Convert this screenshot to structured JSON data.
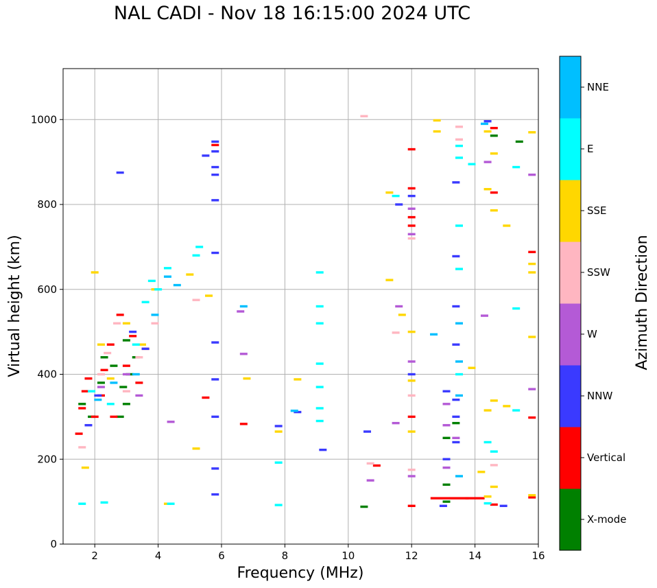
{
  "chart_data": {
    "type": "scatter",
    "title": "NAL CADI - Nov 18 16:15:00 2024 UTC",
    "xlabel": "Frequency (MHz)",
    "ylabel": "Virtual height (km)",
    "xlim": [
      1,
      16
    ],
    "ylim": [
      0,
      1120
    ],
    "xticks": [
      2,
      4,
      6,
      8,
      10,
      12,
      14,
      16
    ],
    "yticks": [
      0,
      200,
      400,
      600,
      800,
      1000
    ],
    "grid": true,
    "colorbar": {
      "label": "Azimuth Direction",
      "categories": [
        {
          "name": "X-mode",
          "color": "#008000"
        },
        {
          "name": "Vertical",
          "color": "#ff0000"
        },
        {
          "name": "NNW",
          "color": "#3a3aff"
        },
        {
          "name": "W",
          "color": "#b45ad6"
        },
        {
          "name": "SSW",
          "color": "#ffb6c1"
        },
        {
          "name": "SSE",
          "color": "#ffd700"
        },
        {
          "name": "E",
          "color": "#00ffff"
        },
        {
          "name": "NNE",
          "color": "#00bfff"
        }
      ]
    },
    "series": [
      {
        "name": "X-mode",
        "points": [
          [
            1.6,
            330
          ],
          [
            1.9,
            300
          ],
          [
            2.2,
            380
          ],
          [
            2.3,
            440
          ],
          [
            2.6,
            420
          ],
          [
            2.8,
            300
          ],
          [
            2.9,
            370
          ],
          [
            3.0,
            330
          ],
          [
            3.0,
            480
          ],
          [
            3.1,
            400
          ],
          [
            3.3,
            440
          ],
          [
            10.5,
            88
          ],
          [
            13.1,
            100
          ],
          [
            13.1,
            250
          ],
          [
            13.1,
            140
          ],
          [
            13.4,
            285
          ],
          [
            14.6,
            962
          ],
          [
            15.4,
            948
          ]
        ]
      },
      {
        "name": "Vertical",
        "points": [
          [
            1.5,
            260
          ],
          [
            1.6,
            320
          ],
          [
            1.7,
            360
          ],
          [
            1.8,
            390
          ],
          [
            2.0,
            300
          ],
          [
            2.2,
            350
          ],
          [
            2.3,
            410
          ],
          [
            2.5,
            470
          ],
          [
            2.6,
            300
          ],
          [
            2.8,
            540
          ],
          [
            3.0,
            420
          ],
          [
            3.2,
            490
          ],
          [
            3.4,
            380
          ],
          [
            3.6,
            460
          ],
          [
            5.5,
            345
          ],
          [
            5.8,
            940
          ],
          [
            6.7,
            283
          ],
          [
            10.9,
            185
          ],
          [
            12.0,
            930
          ],
          [
            12.0,
            838
          ],
          [
            12.0,
            770
          ],
          [
            12.0,
            750
          ],
          [
            12.0,
            300
          ],
          [
            12.0,
            90
          ],
          [
            12.9,
            108
          ],
          [
            13.5,
            108
          ],
          [
            14.0,
            108
          ],
          [
            14.6,
            980
          ],
          [
            14.6,
            828
          ],
          [
            14.6,
            93
          ],
          [
            15.8,
            688
          ],
          [
            15.8,
            298
          ],
          [
            15.8,
            110
          ]
        ]
      },
      {
        "name": "NNW",
        "points": [
          [
            1.8,
            280
          ],
          [
            2.1,
            350
          ],
          [
            2.8,
            875
          ],
          [
            3.2,
            500
          ],
          [
            3.6,
            460
          ],
          [
            5.5,
            915
          ],
          [
            5.8,
            948
          ],
          [
            5.8,
            925
          ],
          [
            5.8,
            888
          ],
          [
            5.8,
            870
          ],
          [
            5.8,
            810
          ],
          [
            5.8,
            686
          ],
          [
            5.8,
            475
          ],
          [
            5.8,
            388
          ],
          [
            5.8,
            300
          ],
          [
            5.8,
            178
          ],
          [
            5.8,
            117
          ],
          [
            7.8,
            278
          ],
          [
            8.4,
            311
          ],
          [
            9.2,
            222
          ],
          [
            10.6,
            265
          ],
          [
            11.6,
            800
          ],
          [
            12.0,
            820
          ],
          [
            12.0,
            400
          ],
          [
            13.0,
            90
          ],
          [
            13.1,
            360
          ],
          [
            13.1,
            200
          ],
          [
            13.4,
            852
          ],
          [
            13.4,
            678
          ],
          [
            13.4,
            560
          ],
          [
            13.4,
            470
          ],
          [
            13.4,
            340
          ],
          [
            13.4,
            300
          ],
          [
            13.4,
            240
          ],
          [
            14.4,
            996
          ],
          [
            14.9,
            90
          ]
        ]
      },
      {
        "name": "W",
        "points": [
          [
            2.2,
            370
          ],
          [
            3.0,
            400
          ],
          [
            3.4,
            350
          ],
          [
            4.4,
            288
          ],
          [
            6.6,
            548
          ],
          [
            6.7,
            448
          ],
          [
            10.7,
            150
          ],
          [
            11.5,
            285
          ],
          [
            11.6,
            560
          ],
          [
            12.0,
            790
          ],
          [
            12.0,
            730
          ],
          [
            12.0,
            430
          ],
          [
            12.0,
            160
          ],
          [
            13.1,
            330
          ],
          [
            13.1,
            280
          ],
          [
            13.1,
            180
          ],
          [
            13.4,
            250
          ],
          [
            14.3,
            538
          ],
          [
            14.4,
            900
          ],
          [
            15.8,
            870
          ],
          [
            15.8,
            365
          ]
        ]
      },
      {
        "name": "SSW",
        "points": [
          [
            1.6,
            228
          ],
          [
            2.2,
            400
          ],
          [
            2.4,
            450
          ],
          [
            2.7,
            520
          ],
          [
            3.0,
            360
          ],
          [
            3.4,
            440
          ],
          [
            3.9,
            520
          ],
          [
            5.2,
            575
          ],
          [
            10.5,
            1008
          ],
          [
            10.7,
            190
          ],
          [
            11.5,
            498
          ],
          [
            12.0,
            720
          ],
          [
            12.0,
            350
          ],
          [
            12.0,
            175
          ],
          [
            13.5,
            983
          ],
          [
            13.5,
            953
          ],
          [
            14.6,
            186
          ]
        ]
      },
      {
        "name": "SSE",
        "points": [
          [
            1.7,
            180
          ],
          [
            2.0,
            640
          ],
          [
            2.2,
            470
          ],
          [
            2.5,
            390
          ],
          [
            3.0,
            520
          ],
          [
            3.5,
            470
          ],
          [
            3.9,
            600
          ],
          [
            4.3,
            95
          ],
          [
            5.0,
            635
          ],
          [
            5.2,
            225
          ],
          [
            5.6,
            585
          ],
          [
            6.8,
            390
          ],
          [
            7.8,
            265
          ],
          [
            8.4,
            388
          ],
          [
            11.3,
            622
          ],
          [
            11.3,
            828
          ],
          [
            11.7,
            540
          ],
          [
            12.0,
            500
          ],
          [
            12.0,
            385
          ],
          [
            12.0,
            265
          ],
          [
            12.8,
            998
          ],
          [
            12.8,
            972
          ],
          [
            13.9,
            415
          ],
          [
            14.2,
            170
          ],
          [
            14.4,
            972
          ],
          [
            14.4,
            836
          ],
          [
            14.6,
            920
          ],
          [
            14.6,
            786
          ],
          [
            14.6,
            338
          ],
          [
            14.4,
            315
          ],
          [
            14.6,
            135
          ],
          [
            14.4,
            112
          ],
          [
            15.0,
            750
          ],
          [
            15.0,
            325
          ],
          [
            15.8,
            970
          ],
          [
            15.8,
            660
          ],
          [
            15.8,
            640
          ],
          [
            15.8,
            488
          ],
          [
            15.8,
            115
          ]
        ]
      },
      {
        "name": "E",
        "points": [
          [
            1.6,
            95
          ],
          [
            1.9,
            360
          ],
          [
            2.3,
            98
          ],
          [
            2.5,
            330
          ],
          [
            3.3,
            470
          ],
          [
            3.6,
            570
          ],
          [
            3.8,
            620
          ],
          [
            4.0,
            600
          ],
          [
            4.3,
            650
          ],
          [
            4.4,
            95
          ],
          [
            5.2,
            680
          ],
          [
            5.3,
            700
          ],
          [
            7.8,
            192
          ],
          [
            7.8,
            92
          ],
          [
            9.1,
            640
          ],
          [
            9.1,
            560
          ],
          [
            9.1,
            520
          ],
          [
            9.1,
            425
          ],
          [
            9.1,
            370
          ],
          [
            9.1,
            320
          ],
          [
            9.1,
            290
          ],
          [
            11.5,
            820
          ],
          [
            13.5,
            938
          ],
          [
            13.5,
            910
          ],
          [
            13.5,
            750
          ],
          [
            13.5,
            648
          ],
          [
            13.5,
            400
          ],
          [
            13.9,
            895
          ],
          [
            14.4,
            240
          ],
          [
            14.4,
            96
          ],
          [
            14.6,
            218
          ],
          [
            15.3,
            888
          ],
          [
            15.3,
            555
          ],
          [
            15.3,
            315
          ]
        ]
      },
      {
        "name": "NNE",
        "points": [
          [
            2.1,
            340
          ],
          [
            2.6,
            380
          ],
          [
            3.3,
            400
          ],
          [
            3.9,
            540
          ],
          [
            4.3,
            630
          ],
          [
            4.6,
            610
          ],
          [
            6.7,
            560
          ],
          [
            8.3,
            314
          ],
          [
            12.7,
            494
          ],
          [
            13.5,
            520
          ],
          [
            13.5,
            430
          ],
          [
            13.5,
            350
          ],
          [
            13.5,
            160
          ],
          [
            14.3,
            990
          ]
        ]
      }
    ]
  }
}
